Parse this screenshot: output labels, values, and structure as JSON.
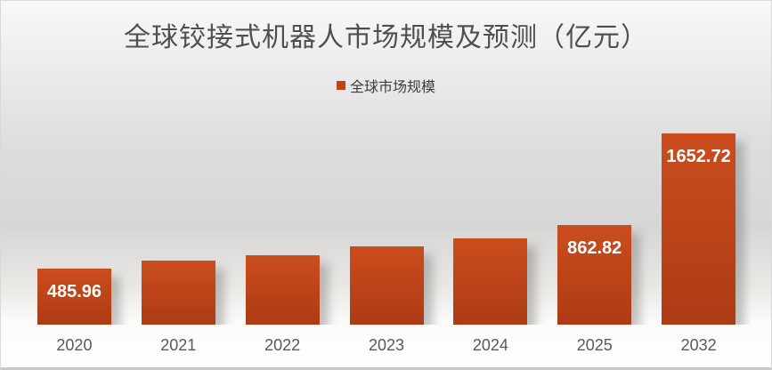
{
  "chart_data": {
    "type": "bar",
    "title": "全球铰接式机器人市场规模及预测（亿元）",
    "legend_position": "top",
    "categories": [
      "2020",
      "2021",
      "2022",
      "2023",
      "2024",
      "2025",
      "2032"
    ],
    "series": [
      {
        "name": "全球市场规模",
        "values": [
          485.96,
          550,
          600,
          675,
          745,
          862.82,
          1652.72
        ]
      }
    ],
    "data_labels": [
      "485.96",
      "",
      "",
      "",
      "",
      "862.82",
      "1652.72"
    ],
    "xlabel": "",
    "ylabel": "",
    "ylim": [
      0,
      1800
    ],
    "grid": false,
    "colors": {
      "bar_top": "#cb4d1e",
      "bar_bottom": "#ad3b14",
      "legend_marker": "#be4517",
      "title_text": "#4f4f4f",
      "axis_text": "#595959",
      "data_label_text": "#ffffff"
    }
  }
}
